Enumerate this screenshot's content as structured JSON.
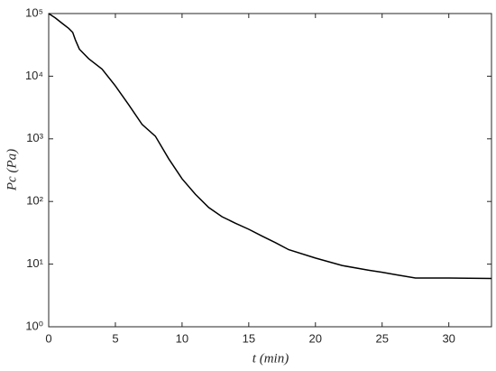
{
  "chart_data": {
    "type": "line",
    "xlabel": "t (min)",
    "ylabel": "Pc (Pa)",
    "x": [
      0,
      0.5,
      1,
      1.5,
      1.8,
      2.0,
      2.3,
      3,
      4,
      5,
      6,
      7,
      8,
      9,
      10,
      11,
      12,
      13,
      14,
      15,
      16,
      17,
      18,
      20,
      22,
      24,
      25,
      26,
      27.5,
      30,
      33.2
    ],
    "series": [
      {
        "color": "#000000",
        "values": [
          100000,
          85000,
          70000,
          58000,
          50000,
          38000,
          27000,
          19000,
          13000,
          7000,
          3500,
          1700,
          1100,
          480,
          230,
          130,
          80,
          57,
          45,
          36,
          28,
          22,
          17,
          12.5,
          9.5,
          8,
          7.4,
          6.8,
          6,
          6,
          5.9
        ]
      }
    ],
    "xlim": [
      0,
      33.2
    ],
    "xticks": [
      0,
      5,
      10,
      15,
      20,
      25,
      30
    ],
    "ylim": [
      1,
      100000
    ],
    "log_y": true,
    "yticks": [
      {
        "value": 1,
        "label": "10⁰"
      },
      {
        "value": 10,
        "label": "10¹"
      },
      {
        "value": 100,
        "label": "10²"
      },
      {
        "value": 1000,
        "label": "10³"
      },
      {
        "value": 10000,
        "label": "10⁴"
      },
      {
        "value": 100000,
        "label": "10⁵"
      }
    ]
  }
}
